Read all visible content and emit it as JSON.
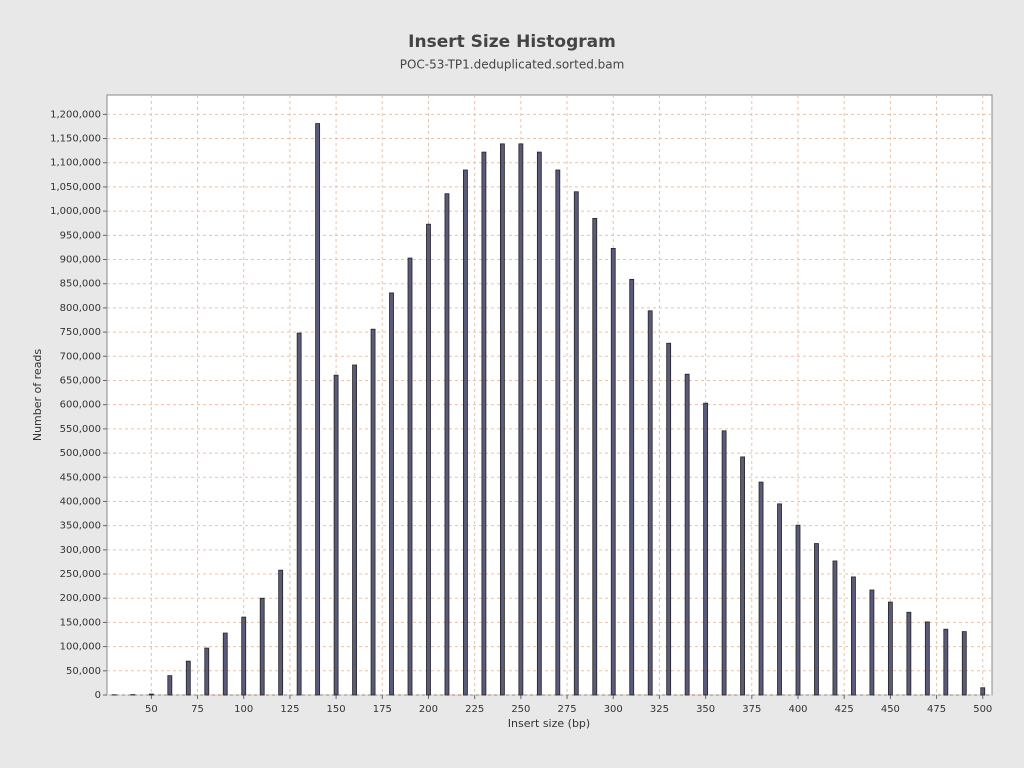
{
  "chart_data": {
    "type": "bar",
    "title": "Insert Size Histogram",
    "subtitle": "POC-53-TP1.deduplicated.sorted.bam",
    "x_label": "Insert size (bp)",
    "y_label": "Number of reads",
    "x": [
      30,
      40,
      50,
      60,
      70,
      80,
      90,
      100,
      110,
      120,
      130,
      140,
      150,
      160,
      170,
      180,
      190,
      200,
      210,
      220,
      230,
      240,
      250,
      260,
      270,
      280,
      290,
      300,
      310,
      320,
      330,
      340,
      350,
      360,
      370,
      380,
      390,
      400,
      410,
      420,
      430,
      440,
      450,
      460,
      470,
      480,
      490,
      500
    ],
    "values": [
      500,
      800,
      2000,
      40000,
      70000,
      97000,
      128000,
      161000,
      200000,
      258000,
      748000,
      1181000,
      661000,
      682000,
      756000,
      831000,
      903000,
      973000,
      1036000,
      1085000,
      1122000,
      1139000,
      1139000,
      1122000,
      1085000,
      1040000,
      985000,
      923000,
      859000,
      794000,
      727000,
      663000,
      603000,
      546000,
      492000,
      440000,
      395000,
      351000,
      313000,
      277000,
      244000,
      217000,
      192000,
      171000,
      151000,
      136000,
      131000,
      15000
    ],
    "color": "#5a5a7a",
    "xlim": [
      26,
      505
    ],
    "xticks": [
      50,
      75,
      100,
      125,
      150,
      175,
      200,
      225,
      250,
      275,
      300,
      325,
      350,
      375,
      400,
      425,
      450,
      475,
      500
    ],
    "ylim": [
      0,
      1240000
    ],
    "yticks": [
      0,
      {
        "value": 50000,
        "label": "50,000"
      },
      {
        "value": 100000,
        "label": "100,000"
      },
      {
        "value": 150000,
        "label": "150,000"
      },
      {
        "value": 200000,
        "label": "200,000"
      },
      {
        "value": 250000,
        "label": "250,000"
      },
      {
        "value": 300000,
        "label": "300,000"
      },
      {
        "value": 350000,
        "label": "350,000"
      },
      {
        "value": 400000,
        "label": "400,000"
      },
      {
        "value": 450000,
        "label": "450,000"
      },
      {
        "value": 500000,
        "label": "500,000"
      },
      {
        "value": 550000,
        "label": "550,000"
      },
      {
        "value": 600000,
        "label": "600,000"
      },
      {
        "value": 650000,
        "label": "650,000"
      },
      {
        "value": 700000,
        "label": "700,000"
      },
      {
        "value": 750000,
        "label": "750,000"
      },
      {
        "value": 800000,
        "label": "800,000"
      },
      {
        "value": 850000,
        "label": "850,000"
      },
      {
        "value": 900000,
        "label": "900,000"
      },
      {
        "value": 950000,
        "label": "950,000"
      },
      {
        "value": 1000000,
        "label": "1,000,000"
      },
      {
        "value": 1050000,
        "label": "1,050,000"
      },
      {
        "value": 1100000,
        "label": "1,100,000"
      },
      {
        "value": 1150000,
        "label": "1,150,000"
      },
      {
        "value": 1200000,
        "label": "1,200,000"
      }
    ],
    "grid": true
  }
}
